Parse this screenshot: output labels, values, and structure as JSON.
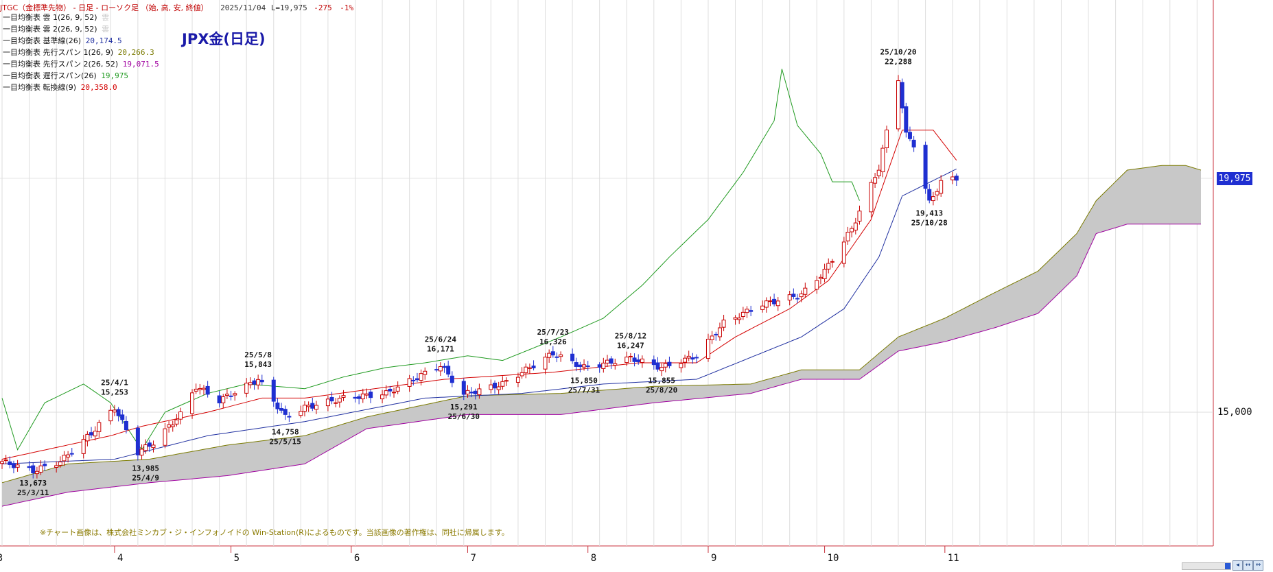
{
  "header": {
    "instrument_title": "JTGC（金標準先物） - 日足 - ローソク足 （始, 高, 安, 終値）",
    "date": "2025/11/04",
    "last_price": "L=19,975",
    "change": "-275",
    "change_pct": "-1%"
  },
  "logo_title": "JPX金(日足)",
  "credit": "※チャート画像は、株式会社ミンカブ・ジ・インフォノイドの Win-Station(R)によるものです。当該画像の著作権は、同社に帰属します。",
  "current_price_label": "19,975",
  "legend": [
    {
      "label": "一目均衡表 雲 1(26, 9, 52)",
      "value": "雲",
      "color": "#c8c8c8"
    },
    {
      "label": "一目均衡表 雲 2(26, 9, 52)",
      "value": "雲",
      "color": "#c8c8c8"
    },
    {
      "label": "一目均衡表 基準線(26)",
      "value": "20,174.5",
      "color": "#1f2fa0"
    },
    {
      "label": "一目均衡表 先行スパン 1(26, 9)",
      "value": "20,266.3",
      "color": "#7a7a00"
    },
    {
      "label": "一目均衡表 先行スパン 2(26, 52)",
      "value": "19,071.5",
      "color": "#a000a0"
    },
    {
      "label": "一目均衡表 遅行スパン(26)",
      "value": "19,975",
      "color": "#1f9a1f"
    },
    {
      "label": "一目均衡表 転換線(9)",
      "value": "20,358.0",
      "color": "#d40000"
    }
  ],
  "colors": {
    "bull": "#c80000",
    "bear": "#1f2fd1",
    "kijun": "#1f2fa0",
    "tenkan": "#d40000",
    "chikou": "#1f9a1f",
    "spanA": "#7a7a00",
    "spanB": "#a000a0",
    "cloud": "#c8c8c8",
    "grid": "#dcdcdc",
    "axis": "#c8323c"
  },
  "chart_data": {
    "type": "candlestick",
    "title": "JPX金(日足)",
    "y_ticks": [
      15000
    ],
    "y_tick_labels": [
      "15,000"
    ],
    "ylim": [
      12400,
      24300
    ],
    "x_months": [
      "3",
      "4",
      "5",
      "6",
      "7",
      "8",
      "9",
      "10",
      "11"
    ],
    "x_range_dates": [
      "2025-03-03",
      "2026-01-06"
    ],
    "annotations": [
      {
        "date": "25/3/11",
        "price": "13,673",
        "value": 13673,
        "kind": "low"
      },
      {
        "date": "25/4/1",
        "price": "15,253",
        "value": 15253,
        "kind": "high"
      },
      {
        "date": "25/4/9",
        "price": "13,985",
        "value": 13985,
        "kind": "low"
      },
      {
        "date": "25/5/8",
        "price": "15,843",
        "value": 15843,
        "kind": "high"
      },
      {
        "date": "25/5/15",
        "price": "14,758",
        "value": 14758,
        "kind": "low"
      },
      {
        "date": "25/6/24",
        "price": "16,171",
        "value": 16171,
        "kind": "high"
      },
      {
        "date": "25/6/30",
        "price": "15,291",
        "value": 15291,
        "kind": "low"
      },
      {
        "date": "25/7/23",
        "price": "16,326",
        "value": 16326,
        "kind": "high"
      },
      {
        "date": "25/7/31",
        "price": "15,850",
        "value": 15850,
        "kind": "low"
      },
      {
        "date": "25/8/12",
        "price": "16,247",
        "value": 16247,
        "kind": "high"
      },
      {
        "date": "25/8/20",
        "price": "15,855",
        "value": 15855,
        "kind": "low"
      },
      {
        "date": "25/10/20",
        "price": "22,288",
        "value": 22288,
        "kind": "high"
      },
      {
        "date": "25/10/28",
        "price": "19,413",
        "value": 19413,
        "kind": "low"
      }
    ],
    "close_keypoints": [
      [
        "2025-03-03",
        13950
      ],
      [
        "2025-03-11",
        13750
      ],
      [
        "2025-03-18",
        13950
      ],
      [
        "2025-03-26",
        14550
      ],
      [
        "2025-04-01",
        15100
      ],
      [
        "2025-04-07",
        14150
      ],
      [
        "2025-04-11",
        14350
      ],
      [
        "2025-04-18",
        14950
      ],
      [
        "2025-04-22",
        15550
      ],
      [
        "2025-04-28",
        15250
      ],
      [
        "2025-05-08",
        15700
      ],
      [
        "2025-05-15",
        14900
      ],
      [
        "2025-05-20",
        15100
      ],
      [
        "2025-05-30",
        15300
      ],
      [
        "2025-06-10",
        15400
      ],
      [
        "2025-06-24",
        16000
      ],
      [
        "2025-06-30",
        15380
      ],
      [
        "2025-07-10",
        15600
      ],
      [
        "2025-07-23",
        16250
      ],
      [
        "2025-07-31",
        15950
      ],
      [
        "2025-08-12",
        16150
      ],
      [
        "2025-08-20",
        15950
      ],
      [
        "2025-08-29",
        16200
      ],
      [
        "2025-09-05",
        16900
      ],
      [
        "2025-09-15",
        17300
      ],
      [
        "2025-09-25",
        17500
      ],
      [
        "2025-10-01",
        18000
      ],
      [
        "2025-10-08",
        18900
      ],
      [
        "2025-10-15",
        20200
      ],
      [
        "2025-10-20",
        22100
      ],
      [
        "2025-10-22",
        20900
      ],
      [
        "2025-10-24",
        20700
      ],
      [
        "2025-10-28",
        19450
      ],
      [
        "2025-10-31",
        19900
      ],
      [
        "2025-11-04",
        19975
      ]
    ],
    "kijun_keypoints": [
      [
        "2025-03-03",
        13900
      ],
      [
        "2025-04-01",
        14000
      ],
      [
        "2025-04-25",
        14500
      ],
      [
        "2025-05-20",
        14800
      ],
      [
        "2025-06-20",
        15300
      ],
      [
        "2025-07-15",
        15400
      ],
      [
        "2025-08-05",
        15600
      ],
      [
        "2025-08-29",
        15700
      ],
      [
        "2025-09-10",
        16100
      ],
      [
        "2025-09-25",
        16600
      ],
      [
        "2025-10-06",
        17200
      ],
      [
        "2025-10-15",
        18300
      ],
      [
        "2025-10-21",
        19600
      ],
      [
        "2025-11-04",
        20174.5
      ]
    ],
    "tenkan_keypoints": [
      [
        "2025-03-03",
        14000
      ],
      [
        "2025-03-31",
        14500
      ],
      [
        "2025-04-08",
        14700
      ],
      [
        "2025-04-25",
        15000
      ],
      [
        "2025-05-09",
        15300
      ],
      [
        "2025-05-20",
        15300
      ],
      [
        "2025-06-25",
        15700
      ],
      [
        "2025-07-23",
        15850
      ],
      [
        "2025-08-14",
        16050
      ],
      [
        "2025-08-29",
        16050
      ],
      [
        "2025-09-08",
        16600
      ],
      [
        "2025-09-22",
        17200
      ],
      [
        "2025-10-02",
        17800
      ],
      [
        "2025-10-13",
        19100
      ],
      [
        "2025-10-21",
        21000
      ],
      [
        "2025-10-29",
        21000
      ],
      [
        "2025-11-04",
        20358
      ]
    ],
    "chikou_keypoints": [
      [
        "2025-03-03",
        15300
      ],
      [
        "2025-03-07",
        14200
      ],
      [
        "2025-03-14",
        15200
      ],
      [
        "2025-03-24",
        15600
      ],
      [
        "2025-03-31",
        15200
      ],
      [
        "2025-04-08",
        14200
      ],
      [
        "2025-04-14",
        15000
      ],
      [
        "2025-04-25",
        15400
      ],
      [
        "2025-05-05",
        15600
      ],
      [
        "2025-05-20",
        15500
      ],
      [
        "2025-05-30",
        15750
      ],
      [
        "2025-06-10",
        15950
      ],
      [
        "2025-06-20",
        16050
      ],
      [
        "2025-07-01",
        16200
      ],
      [
        "2025-07-10",
        16100
      ],
      [
        "2025-07-25",
        16600
      ],
      [
        "2025-08-05",
        17000
      ],
      [
        "2025-08-15",
        17700
      ],
      [
        "2025-08-22",
        18300
      ],
      [
        "2025-09-01",
        19100
      ],
      [
        "2025-09-10",
        20100
      ],
      [
        "2025-09-18",
        21200
      ],
      [
        "2025-09-20",
        22300
      ],
      [
        "2025-09-24",
        21100
      ],
      [
        "2025-09-30",
        20500
      ],
      [
        "2025-10-03",
        19900
      ],
      [
        "2025-10-08",
        19900
      ],
      [
        "2025-10-10",
        19500
      ]
    ],
    "cloud_upper_keypoints": [
      [
        "2025-03-03",
        13500
      ],
      [
        "2025-03-20",
        13900
      ],
      [
        "2025-04-10",
        14000
      ],
      [
        "2025-04-30",
        14300
      ],
      [
        "2025-05-20",
        14500
      ],
      [
        "2025-06-05",
        14900
      ],
      [
        "2025-07-01",
        15350
      ],
      [
        "2025-07-25",
        15400
      ],
      [
        "2025-08-18",
        15550
      ],
      [
        "2025-09-12",
        15600
      ],
      [
        "2025-09-25",
        15900
      ],
      [
        "2025-10-10",
        15900
      ],
      [
        "2025-10-20",
        16600
      ],
      [
        "2025-11-01",
        17000
      ],
      [
        "2025-11-14",
        17550
      ],
      [
        "2025-11-25",
        18000
      ],
      [
        "2025-12-05",
        18800
      ],
      [
        "2025-12-10",
        19500
      ],
      [
        "2025-12-18",
        20150
      ],
      [
        "2025-12-27",
        20250
      ],
      [
        "2026-01-02",
        20250
      ],
      [
        "2026-01-06",
        20150
      ]
    ],
    "cloud_lower_keypoints": [
      [
        "2025-03-03",
        13000
      ],
      [
        "2025-03-20",
        13300
      ],
      [
        "2025-04-10",
        13500
      ],
      [
        "2025-04-30",
        13650
      ],
      [
        "2025-05-20",
        13900
      ],
      [
        "2025-06-05",
        14650
      ],
      [
        "2025-07-01",
        14950
      ],
      [
        "2025-07-25",
        14950
      ],
      [
        "2025-08-18",
        15200
      ],
      [
        "2025-09-12",
        15400
      ],
      [
        "2025-09-25",
        15700
      ],
      [
        "2025-10-10",
        15700
      ],
      [
        "2025-10-20",
        16300
      ],
      [
        "2025-11-01",
        16500
      ],
      [
        "2025-11-14",
        16800
      ],
      [
        "2025-11-25",
        17100
      ],
      [
        "2025-12-05",
        17900
      ],
      [
        "2025-12-10",
        18800
      ],
      [
        "2025-12-18",
        19000
      ],
      [
        "2025-12-27",
        19000
      ],
      [
        "2026-01-02",
        19000
      ],
      [
        "2026-01-06",
        19000
      ]
    ]
  }
}
